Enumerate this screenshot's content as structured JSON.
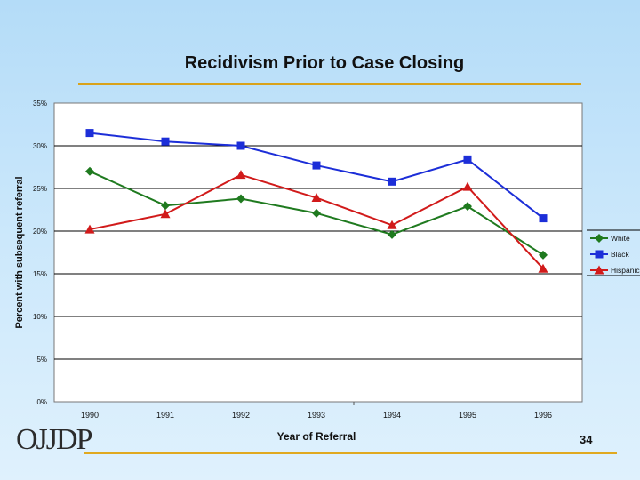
{
  "slide": {
    "title": "Recidivism Prior to Case Closing",
    "logo_text": "OJJDP",
    "page_number": "34"
  },
  "chart_data": {
    "type": "line",
    "title": "Recidivism Prior to Case Closing",
    "xlabel": "Year of Referral",
    "ylabel": "Percent with subsequent referral",
    "categories": [
      "1990",
      "1991",
      "1992",
      "1993",
      "1994",
      "1995",
      "1996"
    ],
    "ylim": [
      0,
      35
    ],
    "yticks": [
      "0%",
      "5%",
      "10%",
      "15%",
      "20%",
      "25%",
      "30%",
      "35%"
    ],
    "grid": "horizontal",
    "legend": "right",
    "series": [
      {
        "name": "White",
        "color": "#1f7a1f",
        "marker": "diamond",
        "values": [
          27.0,
          23.0,
          23.8,
          22.1,
          19.6,
          22.9,
          17.2
        ]
      },
      {
        "name": "Black",
        "color": "#1c2ed8",
        "marker": "square",
        "values": [
          31.5,
          30.5,
          30.0,
          27.7,
          25.8,
          28.4,
          21.5
        ]
      },
      {
        "name": "Hispanic",
        "color": "#d11a1a",
        "marker": "triangle",
        "values": [
          20.2,
          22.0,
          26.6,
          23.9,
          20.7,
          25.2,
          15.6
        ]
      }
    ]
  }
}
